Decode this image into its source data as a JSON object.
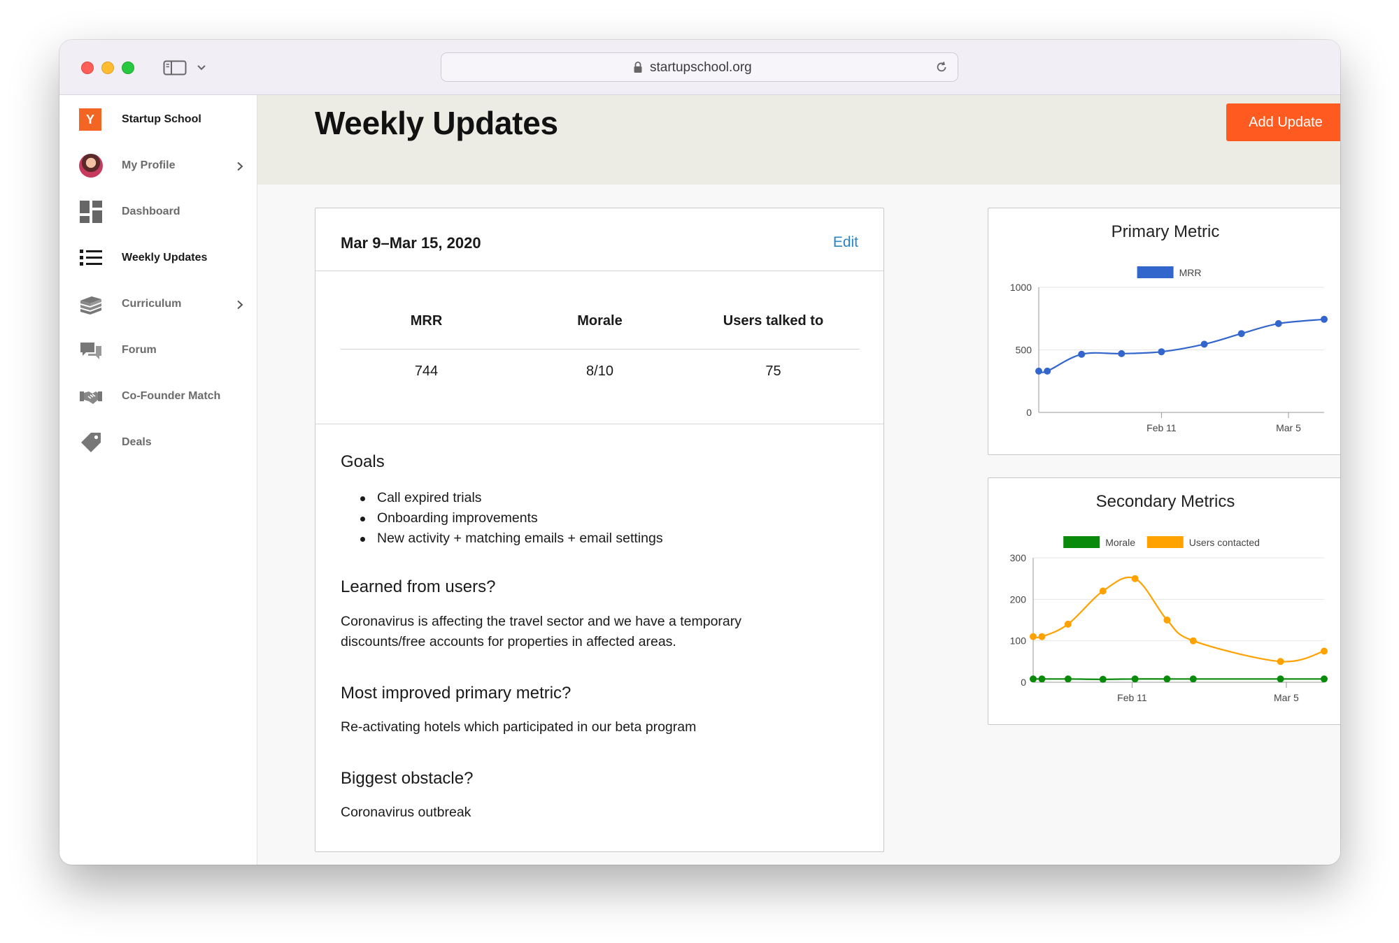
{
  "browser": {
    "url": "startupschool.org"
  },
  "sidebar": {
    "brand": {
      "logo_text": "Y",
      "label": "Startup School"
    },
    "items": [
      {
        "label": "My Profile",
        "icon": "avatar",
        "has_chevron": true
      },
      {
        "label": "Dashboard",
        "icon": "dashboard-icon"
      },
      {
        "label": "Weekly Updates",
        "icon": "list-icon",
        "active": true
      },
      {
        "label": "Curriculum",
        "icon": "books-icon",
        "has_chevron": true
      },
      {
        "label": "Forum",
        "icon": "chat-icon"
      },
      {
        "label": "Co-Founder Match",
        "icon": "handshake-icon"
      },
      {
        "label": "Deals",
        "icon": "tag-icon"
      }
    ]
  },
  "header": {
    "title": "Weekly Updates",
    "add_button": "Add Update"
  },
  "update": {
    "date_range": "Mar 9–Mar 15, 2020",
    "edit_label": "Edit",
    "metrics": {
      "headers": [
        "MRR",
        "Morale",
        "Users talked to"
      ],
      "values": [
        "744",
        "8/10",
        "75"
      ]
    },
    "goals": {
      "heading": "Goals",
      "items": [
        "Call expired trials",
        "Onboarding improvements",
        "New activity + matching emails + email settings"
      ]
    },
    "learned": {
      "heading": "Learned from users?",
      "text": "Coronavirus is affecting the travel sector and we have a temporary discounts/free accounts for properties in affected areas."
    },
    "improved": {
      "heading": "Most improved primary metric?",
      "text": "Re-activating hotels which participated in our beta program"
    },
    "obstacle": {
      "heading": "Biggest obstacle?",
      "text": "Coronavirus outbreak"
    }
  },
  "colors": {
    "accent_orange": "#ff5a1f",
    "link_blue": "#2a85c7",
    "mrr_blue": "#3366cc",
    "morale_green": "#0a8a0a",
    "users_orange": "#ffa200"
  },
  "chart_data": [
    {
      "type": "line",
      "title": "Primary Metric",
      "legend_position": "top",
      "x_ticks": [
        "Feb 11",
        "Mar 5"
      ],
      "y_ticks": [
        0,
        500,
        1000
      ],
      "ylim": [
        0,
        1000
      ],
      "series": [
        {
          "name": "MRR",
          "color": "#3366cc",
          "values": [
            330,
            330,
            465,
            470,
            485,
            545,
            630,
            710,
            744
          ]
        }
      ]
    },
    {
      "type": "line",
      "title": "Secondary Metrics",
      "legend_position": "top",
      "x_ticks": [
        "Feb 11",
        "Mar 5"
      ],
      "y_ticks": [
        0,
        100,
        200,
        300
      ],
      "ylim": [
        0,
        300
      ],
      "series": [
        {
          "name": "Morale",
          "color": "#0a8a0a",
          "values": [
            8,
            8,
            8,
            7,
            8,
            8,
            8,
            8,
            8
          ]
        },
        {
          "name": "Users contacted",
          "color": "#ffa200",
          "values": [
            110,
            110,
            140,
            220,
            250,
            150,
            100,
            50,
            75
          ]
        }
      ]
    }
  ]
}
